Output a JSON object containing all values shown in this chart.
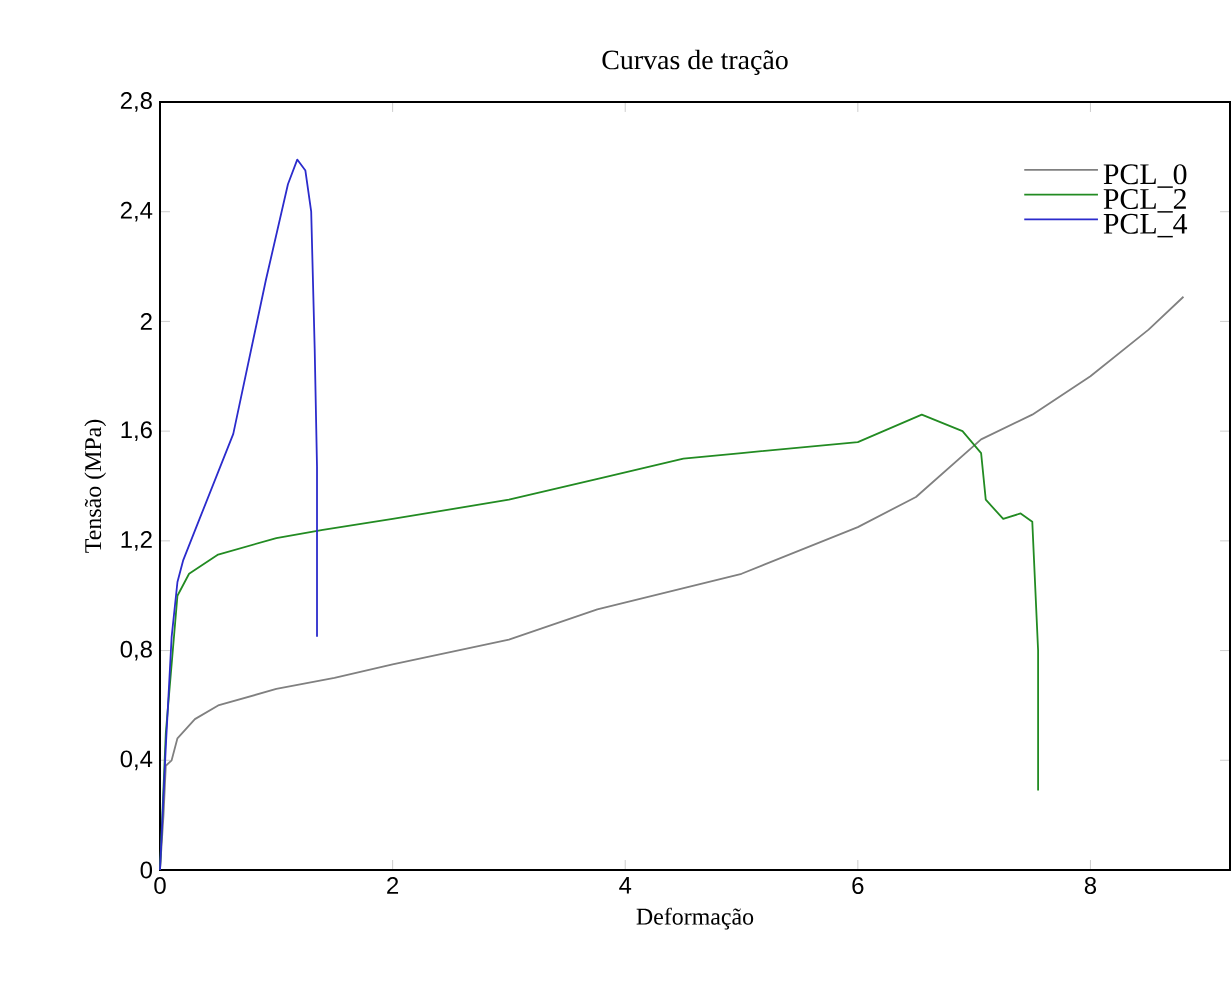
{
  "chart_data": {
    "type": "line",
    "title": "Curvas de tração",
    "xlabel": "Deformação",
    "ylabel": "Tensão (MPa)",
    "xlim": [
      0,
      9.2
    ],
    "ylim": [
      0,
      2.8
    ],
    "xticks": [
      0,
      2,
      4,
      6,
      8
    ],
    "yticks": [
      0,
      {
        "value": 0.4,
        "label": "0,4"
      },
      {
        "value": 0.8,
        "label": "0,8"
      },
      {
        "value": 1.2,
        "label": "1,2"
      },
      {
        "value": 1.6,
        "label": "1,6"
      },
      2,
      {
        "value": 2.4,
        "label": "2,4"
      },
      {
        "value": 2.8,
        "label": "2,8"
      }
    ],
    "legend": "top right",
    "grid": false,
    "marker": "none",
    "line_style": "solid",
    "series": [
      {
        "name": "PCL_0",
        "color": "#808080",
        "x": [
          0,
          0.03,
          0.05,
          0.1,
          0.15,
          0.3,
          0.5,
          1,
          1.5,
          2,
          3,
          3.76,
          5,
          6,
          6.5,
          7.06,
          7.5,
          8,
          8.5,
          8.8
        ],
        "values": [
          0,
          0.2,
          0.38,
          0.4,
          0.48,
          0.55,
          0.6,
          0.66,
          0.7,
          0.75,
          0.84,
          0.95,
          1.08,
          1.25,
          1.36,
          1.57,
          1.66,
          1.8,
          1.97,
          2.09
        ]
      },
      {
        "name": "PCL_2",
        "color": "#228b22",
        "x": [
          0,
          0.05,
          0.1,
          0.15,
          0.25,
          0.5,
          1,
          1.4,
          2,
          3,
          3.8,
          4.5,
          5,
          6,
          6.55,
          6.9,
          7.06,
          7.1,
          7.25,
          7.4,
          7.5,
          7.55,
          7.55
        ],
        "values": [
          0,
          0.5,
          null,
          1.0,
          1.08,
          1.15,
          1.21,
          1.24,
          1.28,
          1.35,
          1.43,
          1.5,
          1.52,
          1.56,
          1.66,
          1.6,
          1.52,
          1.35,
          1.28,
          1.3,
          1.27,
          0.8,
          0.29
        ]
      },
      {
        "name": "PCL_4",
        "color": "#2b2bcc",
        "x": [
          0,
          0.05,
          0.1,
          0.15,
          0.2,
          0.34,
          0.63,
          0.91,
          1.1,
          1.18,
          1.25,
          1.3,
          1.33,
          1.35,
          1.35
        ],
        "values": [
          0,
          0.45,
          0.85,
          1.05,
          1.13,
          1.28,
          1.59,
          2.15,
          2.5,
          2.59,
          2.55,
          2.4,
          1.9,
          1.47,
          0.85
        ]
      }
    ]
  }
}
